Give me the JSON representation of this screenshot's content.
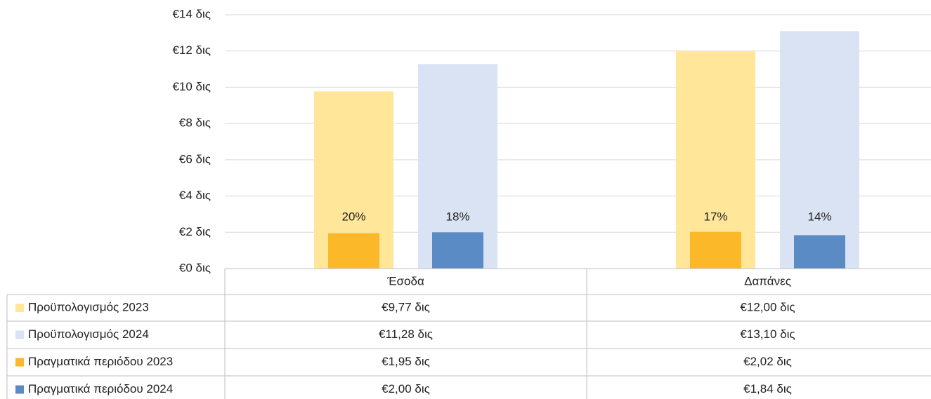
{
  "chart_data": {
    "type": "bar",
    "categories": [
      "Έσοδα",
      "Δαπάνες"
    ],
    "ylim": [
      0,
      14
    ],
    "yticks": [
      {
        "value": 0,
        "label": "€0 δις"
      },
      {
        "value": 2,
        "label": "€2 δις"
      },
      {
        "value": 4,
        "label": "€4 δις"
      },
      {
        "value": 6,
        "label": "€6 δις"
      },
      {
        "value": 8,
        "label": "€8 δις"
      },
      {
        "value": 10,
        "label": "€10 δις"
      },
      {
        "value": 12,
        "label": "€12 δις"
      },
      {
        "value": 14,
        "label": "€14 δις"
      }
    ],
    "grid": true,
    "series": [
      {
        "name": "Προϋπολογισμός 2023",
        "color": "#ffe699",
        "values": [
          9.77,
          12.0
        ],
        "value_labels": [
          "€9,77 δις",
          "€12,00 δις"
        ]
      },
      {
        "name": "Προϋπολογισμός 2024",
        "color": "#dae3f3",
        "values": [
          11.28,
          13.1
        ],
        "value_labels": [
          "€11,28 δις",
          "€13,10 δις"
        ]
      },
      {
        "name": "Πραγματικά περιόδου 2023",
        "color": "#fbb829",
        "values": [
          1.95,
          2.02
        ],
        "value_labels": [
          "€1,95 δις",
          "€2,02 δις"
        ],
        "annotations": [
          "20%",
          "17%"
        ]
      },
      {
        "name": "Πραγματικά περιόδου 2024",
        "color": "#5b8bc5",
        "values": [
          2.0,
          1.84
        ],
        "value_labels": [
          "€2,00 δις",
          "€1,84 δις"
        ],
        "annotations": [
          "18%",
          "14%"
        ]
      }
    ]
  }
}
